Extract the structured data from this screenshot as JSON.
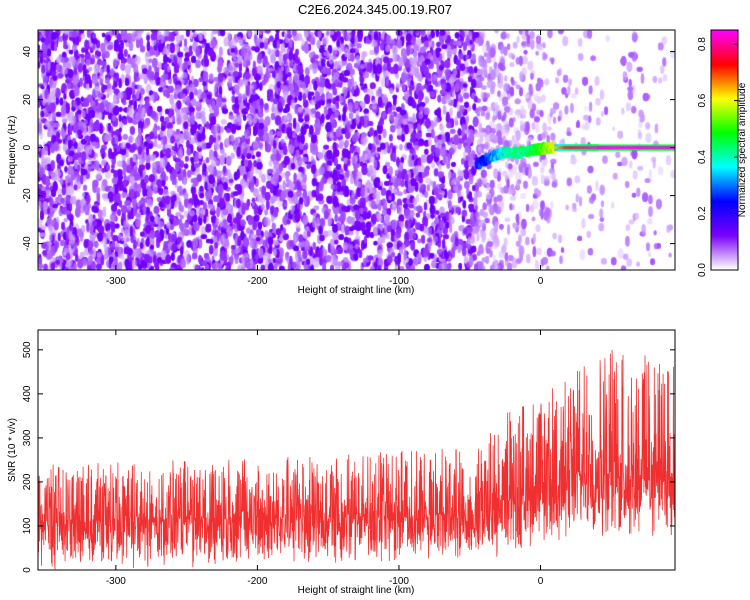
{
  "title": "C2E6.2024.345.00.19.R07",
  "chart_data": [
    {
      "type": "heatmap",
      "xlabel": "Height of straight line (km)",
      "ylabel": "Frequency (Hz)",
      "xlim": [
        -355,
        95
      ],
      "ylim": [
        -51,
        49
      ],
      "x_ticks": [
        -300,
        -200,
        -100,
        0
      ],
      "y_ticks": [
        -40,
        -20,
        0,
        20,
        40
      ],
      "colorbar": {
        "label": "Normalized spectral amplitude",
        "range": [
          0.0,
          0.85
        ],
        "ticks": [
          "0.0",
          "0.2",
          "0.4",
          "0.6",
          "0.8"
        ],
        "colormap": [
          "#ffffff",
          "#7a00ff",
          "#0000ff",
          "#00ffff",
          "#00ff00",
          "#ffff00",
          "#ff0000",
          "#ff00ff"
        ]
      },
      "noise_floor_amplitude": 0.1,
      "signal_start_x": -45,
      "signal_trace": [
        {
          "x": -45,
          "y": -7,
          "amplitude": 0.22
        },
        {
          "x": -35,
          "y": -4,
          "amplitude": 0.3
        },
        {
          "x": -25,
          "y": -2,
          "amplitude": 0.38
        },
        {
          "x": -15,
          "y": -2,
          "amplitude": 0.42
        },
        {
          "x": -5,
          "y": -1,
          "amplitude": 0.45
        },
        {
          "x": 5,
          "y": 0,
          "amplitude": 0.55
        },
        {
          "x": 20,
          "y": 0,
          "amplitude": 0.75
        },
        {
          "x": 40,
          "y": 0,
          "amplitude": 0.85
        },
        {
          "x": 95,
          "y": 0,
          "amplitude": 0.85
        }
      ]
    },
    {
      "type": "line",
      "xlabel": "Height of straight line (km)",
      "ylabel": "SNR (10 * v/v)",
      "xlim": [
        -355,
        95
      ],
      "ylim": [
        0,
        545
      ],
      "x_ticks": [
        -300,
        -200,
        -100,
        0
      ],
      "y_ticks": [
        0,
        100,
        200,
        300,
        400,
        500
      ],
      "line_color": "#f03030",
      "series": [
        {
          "envelope": [
            {
              "x": -355,
              "low": 0,
              "median": 110,
              "high": 240
            },
            {
              "x": -250,
              "low": 0,
              "median": 115,
              "high": 250
            },
            {
              "x": -150,
              "low": 10,
              "median": 120,
              "high": 260
            },
            {
              "x": -50,
              "low": 20,
              "median": 125,
              "high": 280
            },
            {
              "x": -30,
              "low": 30,
              "median": 140,
              "high": 330
            },
            {
              "x": -20,
              "low": 40,
              "median": 160,
              "high": 380
            },
            {
              "x": 0,
              "low": 50,
              "median": 190,
              "high": 400
            },
            {
              "x": 20,
              "low": 60,
              "median": 210,
              "high": 440
            },
            {
              "x": 50,
              "low": 70,
              "median": 230,
              "high": 520
            },
            {
              "x": 95,
              "low": 60,
              "median": 220,
              "high": 470
            }
          ]
        }
      ]
    }
  ]
}
